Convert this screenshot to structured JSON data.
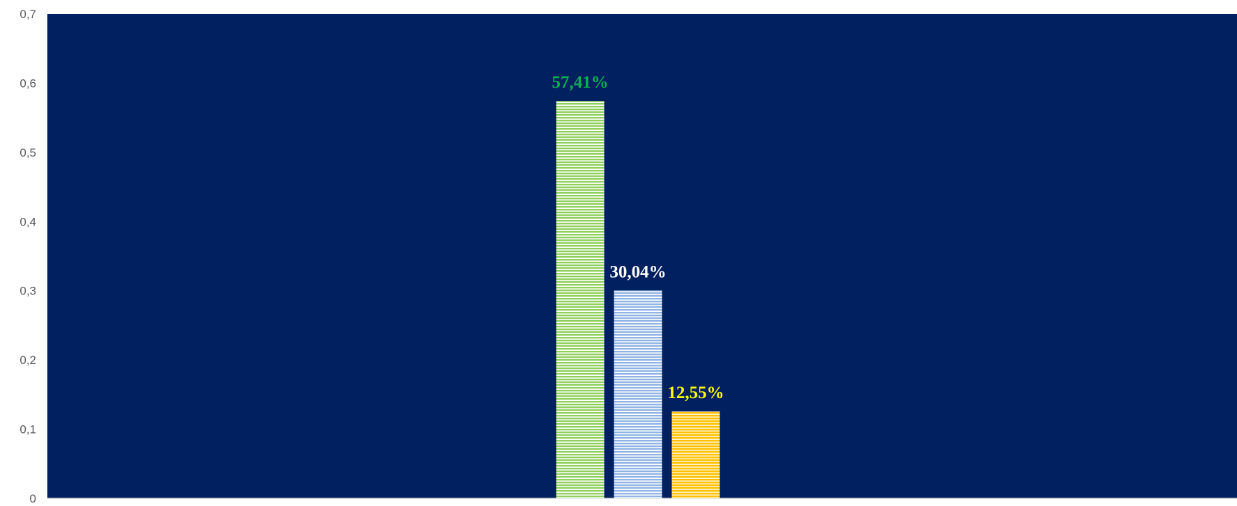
{
  "chart_data": {
    "type": "bar",
    "title": "",
    "xlabel": "",
    "ylabel": "",
    "ylim": [
      0,
      0.7
    ],
    "y_ticks": [
      "0",
      "0,1",
      "0,2",
      "0,3",
      "0,4",
      "0,5",
      "0,6",
      "0,7"
    ],
    "grid": false,
    "legend": "none",
    "plot_background": "#002060",
    "series": [
      {
        "values": [
          0.5741
        ],
        "label": "57,41%",
        "color": "#8fcf5c",
        "label_color": "#00b050",
        "pattern": "horizontal-stripes"
      },
      {
        "values": [
          0.3004
        ],
        "label": "30,04%",
        "color": "#8fb4e3",
        "label_color": "#ffffff",
        "pattern": "horizontal-stripes"
      },
      {
        "values": [
          0.1255
        ],
        "label": "12,55%",
        "color": "#ffc000",
        "label_color": "#ffff00",
        "pattern": "horizontal-stripes"
      }
    ]
  }
}
